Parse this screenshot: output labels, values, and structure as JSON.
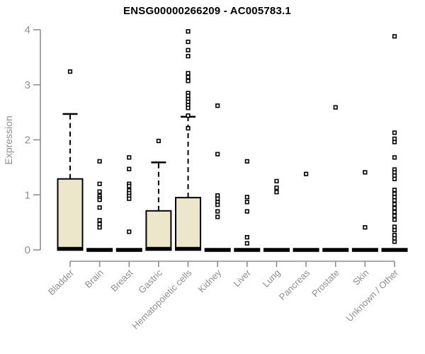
{
  "colors": {
    "background": "#ffffff",
    "title": "#000000",
    "axis": "#8f8f8f",
    "tick_label": "#8f8f8f",
    "box_fill": "#ECE7CA",
    "box_stroke": "#000000",
    "whisker": "#000000",
    "outlier_fill": "#ffffff",
    "outlier_stroke": "#000000"
  },
  "chart_data": {
    "type": "box",
    "title": "ENSG00000266209 - AC005783.1",
    "ylabel": "Expression",
    "xlabel": "",
    "ylim": [
      0,
      4
    ],
    "yticks": [
      "0",
      "1",
      "2",
      "3",
      "4"
    ],
    "grid": false,
    "legend": null,
    "categories": [
      "Bladder",
      "Brain",
      "Breast",
      "Gastric",
      "Hematopoietic cells",
      "Kidney",
      "Liver",
      "Lung",
      "Pancreas",
      "Prostate",
      "Skin",
      "Unknown / Other"
    ],
    "boxes": [
      {
        "category": "Bladder",
        "q1": 0,
        "median": 0.02,
        "q3": 1.29,
        "whisker_low": 0,
        "whisker_high": 2.47,
        "outliers": [
          3.24
        ]
      },
      {
        "category": "Brain",
        "q1": 0,
        "median": 0,
        "q3": 0,
        "whisker_low": 0,
        "whisker_high": 0,
        "outliers": [
          1.61,
          1.2,
          1.06,
          0.98,
          0.94,
          0.91,
          0.77,
          0.54,
          0.47,
          0.41
        ]
      },
      {
        "category": "Breast",
        "q1": 0,
        "median": 0,
        "q3": 0,
        "whisker_low": 0,
        "whisker_high": 0,
        "outliers": [
          1.68,
          1.47,
          1.2,
          1.16,
          1.08,
          1.03,
          0.98,
          0.93,
          0.33
        ]
      },
      {
        "category": "Gastric",
        "q1": 0,
        "median": 0.02,
        "q3": 0.71,
        "whisker_low": 0,
        "whisker_high": 1.59,
        "outliers": [
          1.98
        ]
      },
      {
        "category": "Hematopoietic cells",
        "q1": 0,
        "median": 0.02,
        "q3": 0.95,
        "whisker_low": 0,
        "whisker_high": 2.42,
        "outliers": [
          3.97,
          3.78,
          3.63,
          3.52,
          3.21,
          3.14,
          3.07,
          2.85,
          2.8,
          2.74,
          2.69,
          2.63,
          2.58,
          2.44,
          2.21
        ]
      },
      {
        "category": "Kidney",
        "q1": 0,
        "median": 0,
        "q3": 0,
        "whisker_low": 0,
        "whisker_high": 0,
        "outliers": [
          2.62,
          1.74,
          0.99,
          0.93,
          0.87,
          0.82,
          0.7,
          0.6
        ]
      },
      {
        "category": "Liver",
        "q1": 0,
        "median": 0,
        "q3": 0,
        "whisker_low": 0,
        "whisker_high": 0,
        "outliers": [
          1.61,
          0.96,
          0.87,
          0.7,
          0.23,
          0.12
        ]
      },
      {
        "category": "Lung",
        "q1": 0,
        "median": 0,
        "q3": 0,
        "whisker_low": 0,
        "whisker_high": 0,
        "outliers": [
          1.25,
          1.13,
          1.05
        ]
      },
      {
        "category": "Pancreas",
        "q1": 0,
        "median": 0,
        "q3": 0,
        "whisker_low": 0,
        "whisker_high": 0,
        "outliers": [
          1.38
        ]
      },
      {
        "category": "Prostate",
        "q1": 0,
        "median": 0,
        "q3": 0,
        "whisker_low": 0,
        "whisker_high": 0,
        "outliers": [
          2.59
        ]
      },
      {
        "category": "Skin",
        "q1": 0,
        "median": 0,
        "q3": 0,
        "whisker_low": 0,
        "whisker_high": 0,
        "outliers": [
          1.41,
          0.41
        ]
      },
      {
        "category": "Unknown / Other",
        "q1": 0,
        "median": 0,
        "q3": 0,
        "whisker_low": 0,
        "whisker_high": 0,
        "outliers": [
          3.88,
          2.13,
          2.02,
          1.96,
          1.68,
          1.46,
          1.41,
          1.35,
          1.29,
          1.09,
          1.02,
          0.96,
          0.9,
          0.83,
          0.76,
          0.69,
          0.62,
          0.55,
          0.42,
          0.36,
          0.27,
          0.21,
          0.15
        ]
      }
    ]
  }
}
